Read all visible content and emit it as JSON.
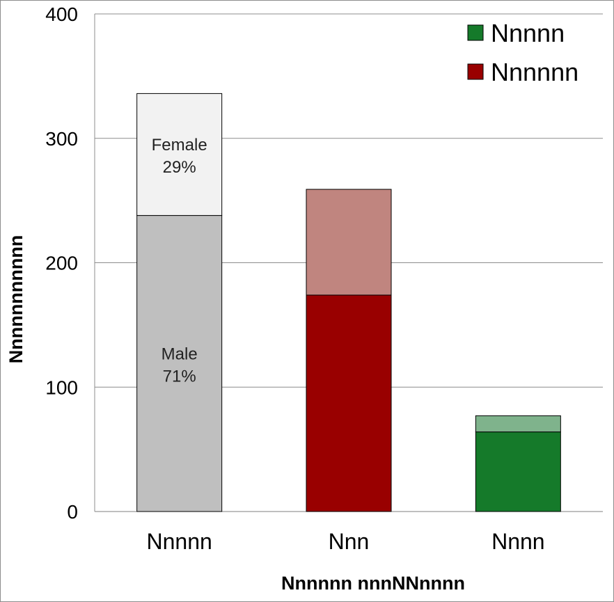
{
  "chart_data": {
    "type": "bar",
    "stacked": true,
    "categories": [
      "Nnnnn",
      "Nnn",
      "Nnnn"
    ],
    "series_colors": [
      {
        "base": "#bfbfbf",
        "top": "#f2f2f2"
      },
      {
        "base": "#990000",
        "top": "#c0857f"
      },
      {
        "base": "#157a2a",
        "top": "#7fb38c"
      }
    ],
    "bars": [
      {
        "category": "Nnnnn",
        "base": 238,
        "top": 98,
        "base_label": [
          "Male",
          "71%"
        ],
        "top_label": [
          "Female",
          "29%"
        ]
      },
      {
        "category": "Nnn",
        "base": 174,
        "top": 85
      },
      {
        "category": "Nnnn",
        "base": 64,
        "top": 13
      }
    ],
    "ylim": [
      0,
      400
    ],
    "yticks": [
      0,
      100,
      200,
      300,
      400
    ],
    "xlabel": "Nnnnnn nnnNNnnnn",
    "ylabel": "Nnnnnnnnnnn",
    "grid": true,
    "legend": {
      "placement": "top-right",
      "entries": [
        {
          "label": "Nnnnn",
          "color": "#157a2a"
        },
        {
          "label": "Nnnnnn",
          "color": "#990000"
        }
      ]
    }
  }
}
